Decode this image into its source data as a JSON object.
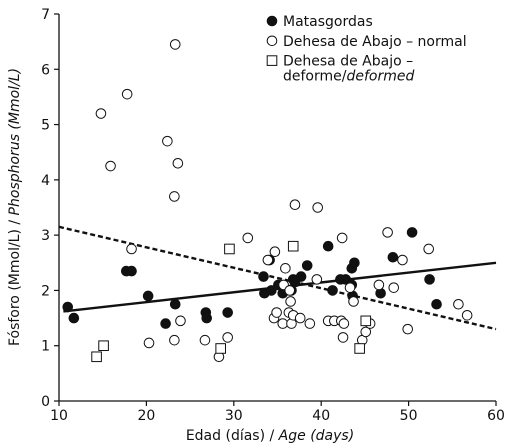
{
  "chart_data": {
    "type": "scatter",
    "xlabel": "Edad (días) / ",
    "xlabel_italic": "Age (days)",
    "ylabel": "Fósforo (Mmol/L) / ",
    "ylabel_italic": "Phosphorus (Mmol/L)",
    "xlim": [
      10,
      60
    ],
    "ylim": [
      0,
      7
    ],
    "xticks": [
      "10",
      "20",
      "30",
      "40",
      "50",
      "60"
    ],
    "yticks": [
      "0",
      "1",
      "2",
      "3",
      "4",
      "5",
      "6",
      "7"
    ],
    "legend_position": "top-right",
    "legend": [
      {
        "marker": "filled-circle",
        "lines": [
          {
            "text": "Matasgordas"
          }
        ]
      },
      {
        "marker": "open-circle",
        "lines": [
          {
            "text": "Dehesa de Abajo – normal"
          }
        ]
      },
      {
        "marker": "open-square",
        "lines": [
          {
            "text": "Dehesa de Abajo –"
          },
          {
            "text": "deforme/",
            "italic_tail": "deformed"
          }
        ]
      }
    ],
    "series": [
      {
        "marker": "filled-circle",
        "points": [
          [
            11,
            1.7
          ],
          [
            11.7,
            1.5
          ],
          [
            17.7,
            2.35
          ],
          [
            18.3,
            2.35
          ],
          [
            20.2,
            1.9
          ],
          [
            22.2,
            1.4
          ],
          [
            23.3,
            1.75
          ],
          [
            26.8,
            1.6
          ],
          [
            26.9,
            1.5
          ],
          [
            29.3,
            1.6
          ],
          [
            33.4,
            2.25
          ],
          [
            34.1,
            2.55
          ],
          [
            33.5,
            1.95
          ],
          [
            34.3,
            2.0
          ],
          [
            35.1,
            2.1
          ],
          [
            35.6,
            1.95
          ],
          [
            36.6,
            2.0
          ],
          [
            36.8,
            2.2
          ],
          [
            37.7,
            2.25
          ],
          [
            37.0,
            2.15
          ],
          [
            38.4,
            2.45
          ],
          [
            40.8,
            2.8
          ],
          [
            41.3,
            2.0
          ],
          [
            42.2,
            2.2
          ],
          [
            42.8,
            2.2
          ],
          [
            43.5,
            2.1
          ],
          [
            43.5,
            2.4
          ],
          [
            43.6,
            1.9
          ],
          [
            43.8,
            2.5
          ],
          [
            46.8,
            1.95
          ],
          [
            48.2,
            2.6
          ],
          [
            50.4,
            3.05
          ],
          [
            52.4,
            2.2
          ],
          [
            53.2,
            1.75
          ]
        ]
      },
      {
        "marker": "open-circle",
        "points": [
          [
            14.8,
            5.2
          ],
          [
            15.9,
            4.25
          ],
          [
            17.8,
            5.55
          ],
          [
            18.3,
            2.75
          ],
          [
            20.3,
            1.05
          ],
          [
            22.4,
            4.7
          ],
          [
            23.3,
            6.45
          ],
          [
            23.2,
            3.7
          ],
          [
            23.6,
            4.3
          ],
          [
            23.9,
            1.45
          ],
          [
            23.2,
            1.1
          ],
          [
            26.7,
            1.1
          ],
          [
            28.3,
            0.8
          ],
          [
            29.3,
            1.15
          ],
          [
            31.6,
            2.95
          ],
          [
            33.9,
            2.55
          ],
          [
            34.6,
            1.5
          ],
          [
            34.7,
            2.7
          ],
          [
            34.9,
            1.6
          ],
          [
            35.6,
            1.4
          ],
          [
            35.7,
            2.1
          ],
          [
            35.9,
            2.4
          ],
          [
            36.3,
            1.6
          ],
          [
            36.4,
            2.0
          ],
          [
            36.5,
            1.8
          ],
          [
            36.6,
            1.4
          ],
          [
            36.8,
            1.55
          ],
          [
            37.0,
            3.55
          ],
          [
            37.6,
            1.5
          ],
          [
            38.7,
            1.4
          ],
          [
            39.6,
            3.5
          ],
          [
            39.5,
            2.2
          ],
          [
            40.8,
            1.45
          ],
          [
            41.5,
            1.45
          ],
          [
            42.3,
            1.45
          ],
          [
            42.5,
            1.15
          ],
          [
            42.4,
            2.95
          ],
          [
            42.6,
            1.4
          ],
          [
            43.3,
            2.05
          ],
          [
            43.7,
            1.8
          ],
          [
            44.7,
            1.1
          ],
          [
            45.1,
            1.25
          ],
          [
            45.6,
            1.4
          ],
          [
            46.6,
            2.1
          ],
          [
            47.6,
            3.05
          ],
          [
            48.3,
            2.05
          ],
          [
            49.3,
            2.55
          ],
          [
            49.9,
            1.3
          ],
          [
            52.3,
            2.75
          ],
          [
            55.7,
            1.75
          ],
          [
            56.7,
            1.55
          ]
        ]
      },
      {
        "marker": "open-square",
        "points": [
          [
            14.3,
            0.8
          ],
          [
            15.1,
            1.0
          ],
          [
            28.5,
            0.95
          ],
          [
            29.5,
            2.75
          ],
          [
            36.8,
            2.8
          ],
          [
            44.4,
            0.95
          ],
          [
            45.1,
            1.45
          ]
        ]
      }
    ],
    "trend_lines": [
      {
        "style": "solid",
        "from": [
          10.5,
          1.62
        ],
        "to": [
          60,
          2.5
        ]
      },
      {
        "style": "dashed",
        "from": [
          10,
          3.15
        ],
        "to": [
          60,
          1.3
        ]
      }
    ]
  }
}
